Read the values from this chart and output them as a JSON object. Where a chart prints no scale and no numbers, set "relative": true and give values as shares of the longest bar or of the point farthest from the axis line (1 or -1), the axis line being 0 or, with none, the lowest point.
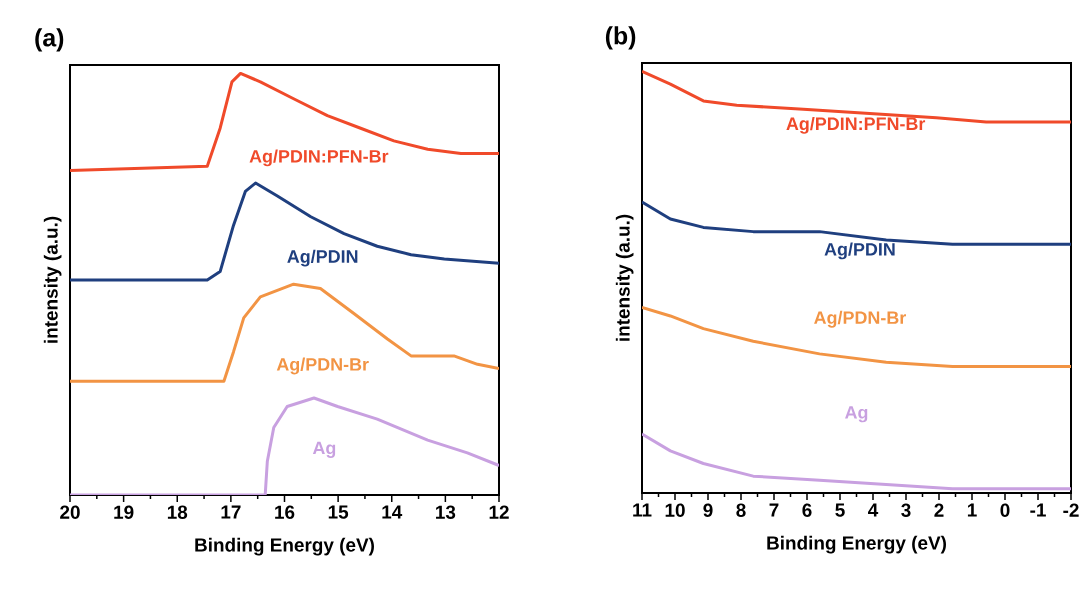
{
  "chart_data": [
    {
      "type": "line",
      "title": "(a)",
      "xlabel": "Binding Energy (eV)",
      "ylabel": "intensity (a.u.)",
      "relative": true,
      "xlim": [
        20,
        12
      ],
      "xticks": [
        20,
        19,
        18,
        17,
        16,
        15,
        14,
        13,
        12
      ],
      "series": [
        {
          "name": "Ag/PDIN:PFN-Br",
          "color": "#f04a2a",
          "x": [
            20,
            17.44,
            17.2,
            16.98,
            16.82,
            16.45,
            15.83,
            15.2,
            14.58,
            13.96,
            13.33,
            12.71,
            12
          ],
          "values": [
            0.77,
            0.78,
            0.87,
            0.98,
            1.0,
            0.98,
            0.94,
            0.9,
            0.87,
            0.84,
            0.82,
            0.81,
            0.81
          ]
        },
        {
          "name": "Ag/PDIN",
          "color": "#1f3f7f",
          "x": [
            20,
            17.44,
            17.2,
            16.95,
            16.73,
            16.54,
            16.14,
            15.51,
            14.89,
            14.27,
            13.64,
            13.02,
            12
          ],
          "values": [
            0.51,
            0.51,
            0.53,
            0.64,
            0.72,
            0.74,
            0.71,
            0.66,
            0.62,
            0.59,
            0.57,
            0.56,
            0.55
          ]
        },
        {
          "name": "Ag/PDN-Br",
          "color": "#f29444",
          "x": [
            20,
            17.13,
            16.95,
            16.76,
            16.45,
            15.83,
            15.33,
            14.7,
            14.08,
            13.64,
            13.15,
            12.84,
            12.4,
            12
          ],
          "values": [
            0.27,
            0.27,
            0.34,
            0.42,
            0.47,
            0.5,
            0.49,
            0.43,
            0.37,
            0.33,
            0.33,
            0.33,
            0.31,
            0.3
          ]
        },
        {
          "name": "Ag",
          "color": "#c8a0e0",
          "x": [
            20,
            16.36,
            16.32,
            16.2,
            15.95,
            15.45,
            15.01,
            14.27,
            13.33,
            12.59,
            12
          ],
          "values": [
            0.0,
            0.0,
            0.08,
            0.16,
            0.21,
            0.23,
            0.21,
            0.18,
            0.13,
            0.1,
            0.07
          ]
        }
      ]
    },
    {
      "type": "line",
      "title": "(b)",
      "xlabel": "Binding Energy (eV)",
      "ylabel": "intensity (a.u.)",
      "relative": true,
      "xlim": [
        11,
        -2
      ],
      "xticks": [
        11,
        10,
        9,
        8,
        7,
        6,
        5,
        4,
        3,
        2,
        1,
        0,
        -1,
        -2
      ],
      "series": [
        {
          "name": "Ag/PDIN:PFN-Br",
          "color": "#f04a2a",
          "x": [
            11,
            10.14,
            9.14,
            8.13,
            6.11,
            4.1,
            2.08,
            0.57,
            -2
          ],
          "values": [
            1.0,
            0.97,
            0.93,
            0.92,
            0.91,
            0.9,
            0.89,
            0.88,
            0.88
          ]
        },
        {
          "name": "Ag/PDIN",
          "color": "#1f3f7f",
          "x": [
            11,
            10.14,
            9.14,
            7.63,
            5.62,
            3.6,
            1.59,
            -0.43,
            -2
          ],
          "values": [
            0.69,
            0.65,
            0.63,
            0.62,
            0.62,
            0.6,
            0.59,
            0.59,
            0.59
          ]
        },
        {
          "name": "Ag/PDN-Br",
          "color": "#f29444",
          "x": [
            11,
            10.14,
            9.14,
            7.63,
            5.62,
            3.6,
            1.59,
            -2
          ],
          "values": [
            0.44,
            0.42,
            0.39,
            0.36,
            0.33,
            0.31,
            0.3,
            0.3
          ]
        },
        {
          "name": "Ag",
          "color": "#c8a0e0",
          "x": [
            11,
            10.14,
            9.14,
            7.63,
            5.62,
            3.6,
            1.59,
            -2
          ],
          "values": [
            0.14,
            0.1,
            0.07,
            0.04,
            0.03,
            0.02,
            0.01,
            0.01
          ]
        }
      ]
    }
  ]
}
